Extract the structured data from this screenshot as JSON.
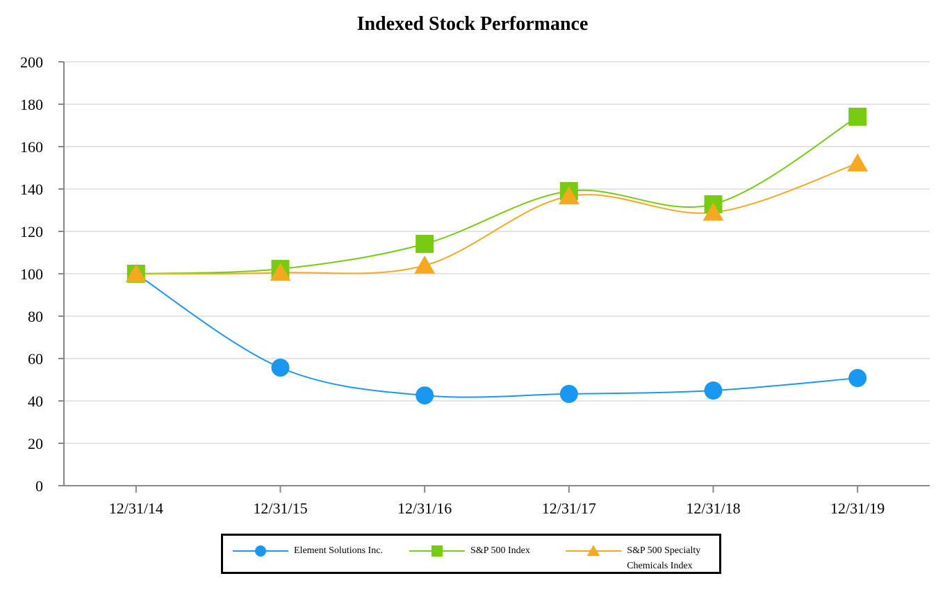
{
  "chart_data": {
    "type": "line",
    "title": "Indexed Stock Performance",
    "categories": [
      "12/31/14",
      "12/31/15",
      "12/31/16",
      "12/31/17",
      "12/31/18",
      "12/31/19"
    ],
    "series": [
      {
        "name": "Element Solutions Inc.",
        "color": "#1a97f0",
        "marker": "circle",
        "values": [
          100,
          55.7,
          42.6,
          43.3,
          44.9,
          50.8
        ]
      },
      {
        "name": "S&P 500 Index",
        "color": "#77cc11",
        "marker": "square",
        "values": [
          100,
          102.3,
          114.1,
          139,
          132.8,
          174.1
        ]
      },
      {
        "name": "S&P 500 Specialty Chemicals Index",
        "color": "#f6a821",
        "marker": "triangle",
        "values": [
          100,
          100.5,
          103.9,
          136.6,
          128.9,
          152.1
        ]
      }
    ],
    "ylim": [
      0,
      200
    ],
    "yticks": [
      0,
      20,
      40,
      60,
      80,
      100,
      120,
      140,
      160,
      180,
      200
    ],
    "grid": true
  }
}
